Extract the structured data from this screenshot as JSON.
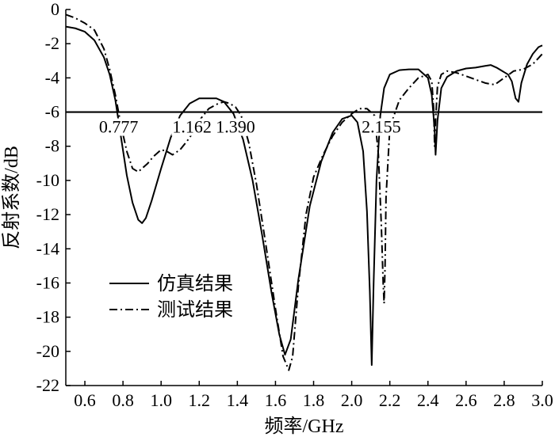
{
  "chart_data": {
    "type": "line",
    "xlabel": "频率/GHz",
    "ylabel": "反射系数/dB",
    "xlim": [
      0.5,
      3.0
    ],
    "ylim": [
      -22,
      0
    ],
    "xticks": [
      "0.6",
      "0.8",
      "1.0",
      "1.2",
      "1.4",
      "1.6",
      "1.8",
      "2.0",
      "2.2",
      "2.4",
      "2.6",
      "2.8",
      "3.0"
    ],
    "yticks": [
      "0",
      "-2",
      "-4",
      "-6",
      "-8",
      "-10",
      "-12",
      "-14",
      "-16",
      "-18",
      "-20",
      "-22"
    ],
    "grid": false,
    "legend_position": "lower-left",
    "reference_line": {
      "y": -6
    },
    "annotations": [
      {
        "text": "0.777",
        "x": 0.777
      },
      {
        "text": "1.162",
        "x": 1.162
      },
      {
        "text": "1.390",
        "x": 1.39
      },
      {
        "text": "2.155",
        "x": 2.155
      }
    ],
    "series": [
      {
        "name": "仿真结果",
        "style": "solid",
        "x": [
          0.5,
          0.55,
          0.6,
          0.65,
          0.7,
          0.73,
          0.76,
          0.79,
          0.82,
          0.85,
          0.88,
          0.9,
          0.92,
          0.95,
          1.0,
          1.05,
          1.1,
          1.15,
          1.2,
          1.25,
          1.29,
          1.33,
          1.38,
          1.43,
          1.48,
          1.53,
          1.58,
          1.62,
          1.65,
          1.68,
          1.72,
          1.78,
          1.84,
          1.9,
          1.95,
          2.0,
          2.03,
          2.06,
          2.08,
          2.095,
          2.105,
          2.115,
          2.13,
          2.15,
          2.17,
          2.2,
          2.25,
          2.3,
          2.35,
          2.4,
          2.42,
          2.435,
          2.44,
          2.45,
          2.47,
          2.5,
          2.55,
          2.6,
          2.65,
          2.7,
          2.73,
          2.76,
          2.79,
          2.82,
          2.84,
          2.86,
          2.875,
          2.89,
          2.92,
          2.95,
          2.98,
          3.0
        ],
        "values": [
          -1.0,
          -1.1,
          -1.3,
          -1.8,
          -2.8,
          -3.8,
          -5.3,
          -7.5,
          -9.7,
          -11.3,
          -12.3,
          -12.5,
          -12.2,
          -11.2,
          -9.3,
          -7.5,
          -6.2,
          -5.5,
          -5.2,
          -5.2,
          -5.2,
          -5.4,
          -6.1,
          -7.6,
          -10.0,
          -13.2,
          -16.6,
          -19.0,
          -20.2,
          -19.3,
          -15.8,
          -11.5,
          -8.9,
          -7.2,
          -6.4,
          -6.2,
          -6.6,
          -8.3,
          -11.8,
          -16.5,
          -20.8,
          -16.0,
          -10.0,
          -6.2,
          -4.6,
          -3.8,
          -3.55,
          -3.5,
          -3.5,
          -4.0,
          -5.0,
          -7.0,
          -8.5,
          -6.5,
          -4.6,
          -3.95,
          -3.6,
          -3.45,
          -3.4,
          -3.3,
          -3.25,
          -3.4,
          -3.6,
          -3.8,
          -4.2,
          -5.2,
          -5.4,
          -4.3,
          -3.2,
          -2.6,
          -2.2,
          -2.1
        ]
      },
      {
        "name": "测试结果",
        "style": "dashdot",
        "x": [
          0.5,
          0.55,
          0.6,
          0.65,
          0.7,
          0.73,
          0.76,
          0.79,
          0.82,
          0.85,
          0.88,
          0.9,
          0.93,
          0.96,
          1.0,
          1.03,
          1.06,
          1.1,
          1.15,
          1.2,
          1.25,
          1.3,
          1.33,
          1.36,
          1.39,
          1.42,
          1.46,
          1.5,
          1.55,
          1.6,
          1.64,
          1.67,
          1.69,
          1.72,
          1.76,
          1.8,
          1.85,
          1.9,
          1.95,
          2.0,
          2.04,
          2.08,
          2.12,
          2.14,
          2.155,
          2.165,
          2.17,
          2.175,
          2.18,
          2.2,
          2.25,
          2.3,
          2.35,
          2.4,
          2.42,
          2.43,
          2.435,
          2.44,
          2.45,
          2.47,
          2.5,
          2.55,
          2.6,
          2.65,
          2.7,
          2.75,
          2.8,
          2.85,
          2.9,
          2.95,
          3.0
        ],
        "values": [
          -0.3,
          -0.5,
          -0.8,
          -1.2,
          -2.3,
          -3.5,
          -5.0,
          -6.8,
          -8.3,
          -9.3,
          -9.5,
          -9.3,
          -9.0,
          -8.6,
          -8.2,
          -8.3,
          -8.5,
          -8.2,
          -7.5,
          -6.5,
          -5.8,
          -5.5,
          -5.4,
          -5.5,
          -5.7,
          -6.2,
          -7.8,
          -10.2,
          -13.8,
          -17.5,
          -20.3,
          -21.1,
          -20.3,
          -16.2,
          -12.0,
          -9.8,
          -8.5,
          -7.4,
          -6.6,
          -6.1,
          -5.8,
          -5.8,
          -6.2,
          -8.5,
          -12.5,
          -16.0,
          -17.2,
          -15.0,
          -11.0,
          -6.9,
          -5.3,
          -4.6,
          -4.0,
          -3.8,
          -4.2,
          -5.8,
          -8.0,
          -6.5,
          -4.5,
          -3.8,
          -3.6,
          -3.7,
          -3.9,
          -4.1,
          -4.3,
          -4.4,
          -4.0,
          -3.6,
          -3.5,
          -3.2,
          -2.6
        ]
      }
    ]
  }
}
